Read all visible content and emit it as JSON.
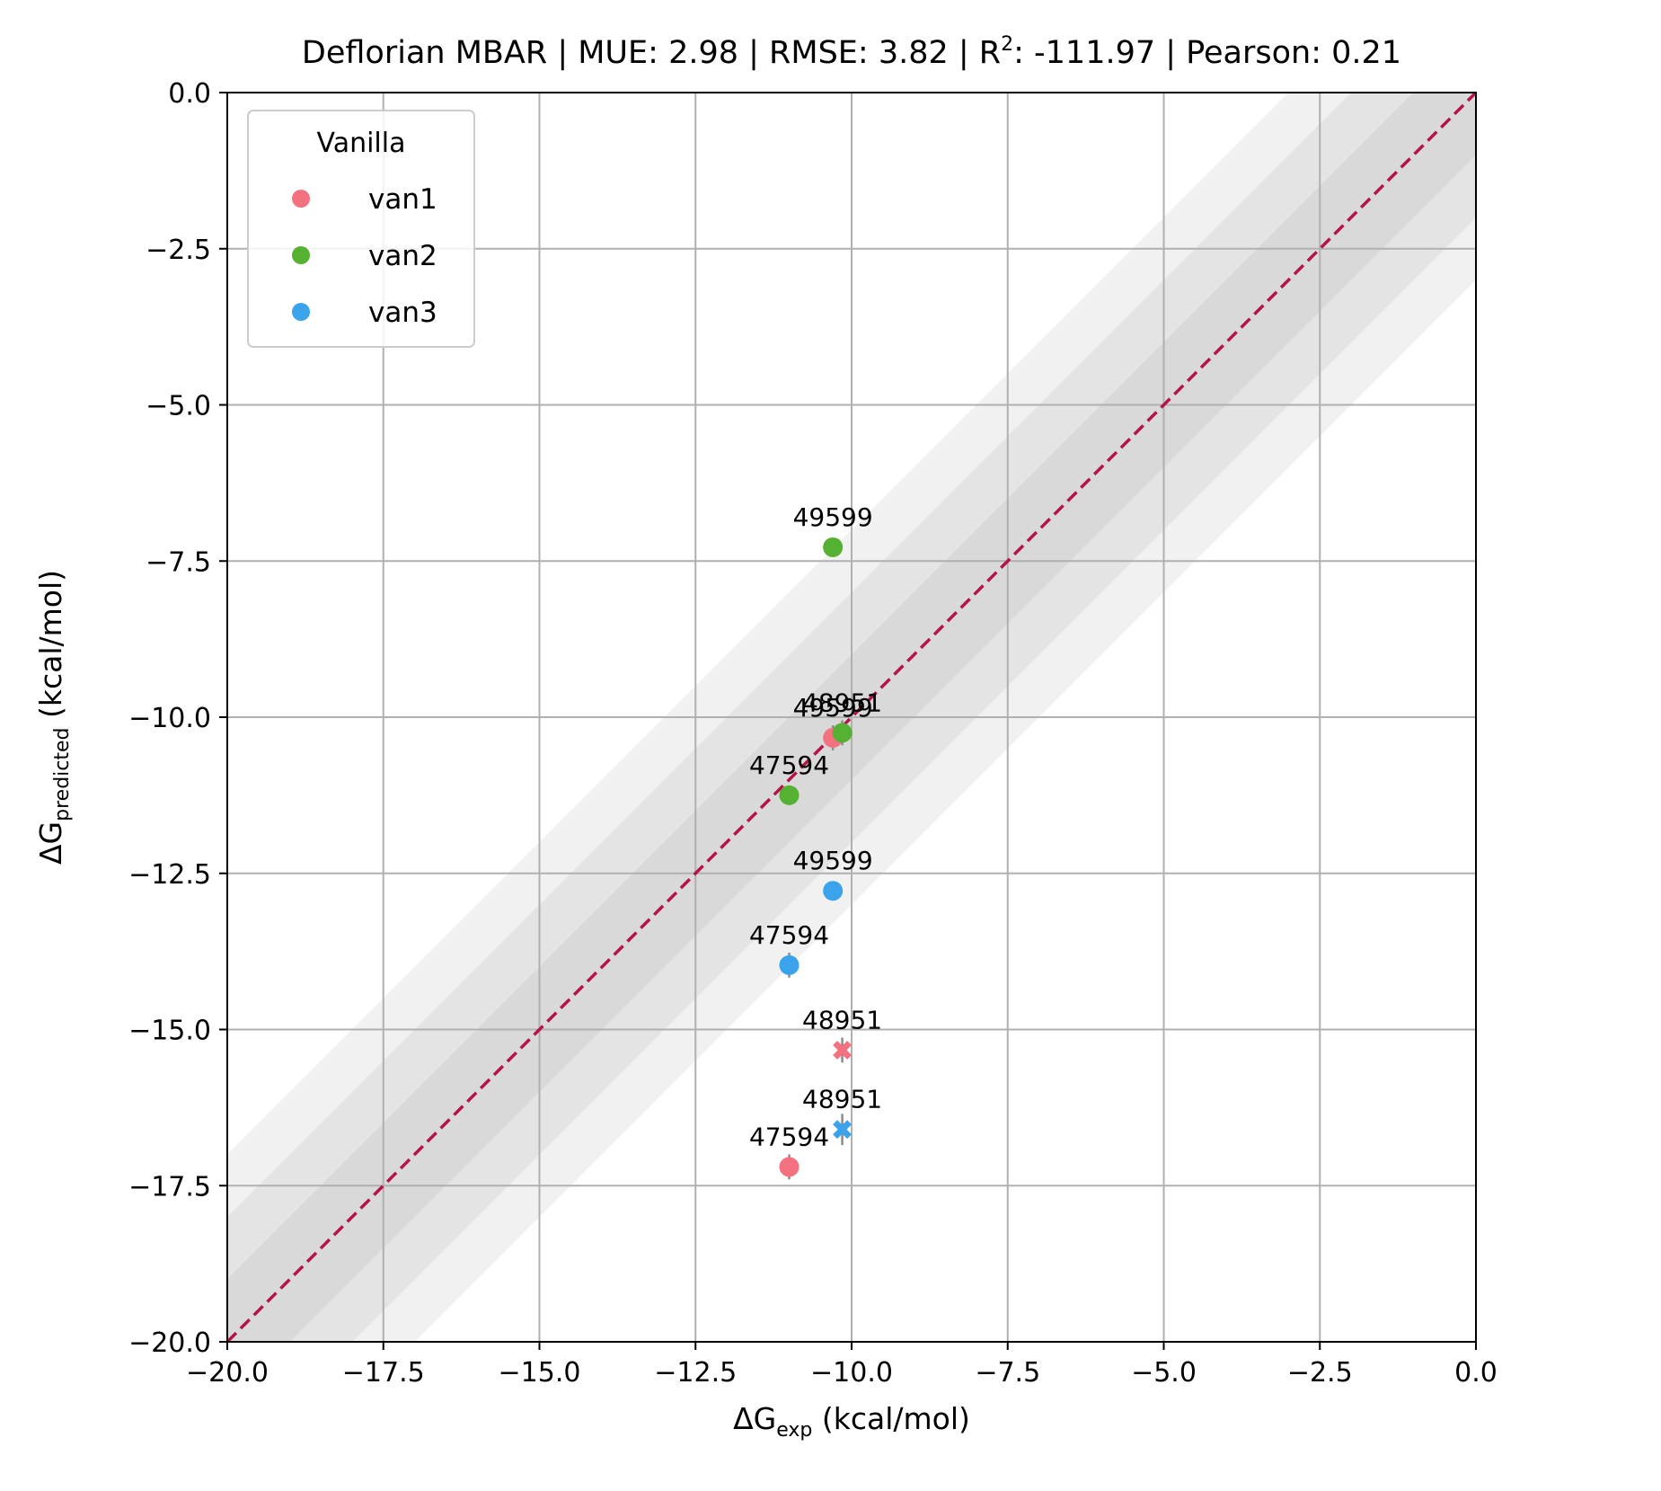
{
  "chart_data": {
    "type": "scatter",
    "title": {
      "prefix": "Deflorian MBAR | MUE: 2.98 | RMSE: 3.82 | R",
      "sup": "2",
      "suffix": ": -111.97 | Pearson: 0.21"
    },
    "xlabel": {
      "main": "ΔG",
      "sub": "exp",
      "unit": " (kcal/mol)"
    },
    "ylabel": {
      "main": "ΔG",
      "sub": "predicted",
      "unit": " (kcal/mol)"
    },
    "xlim": [
      -20,
      0
    ],
    "ylim": [
      -20,
      0
    ],
    "x_ticks": [
      -20,
      -17.5,
      -15,
      -12.5,
      -10,
      -7.5,
      -5,
      -2.5,
      0
    ],
    "y_ticks": [
      -20,
      -17.5,
      -15,
      -12.5,
      -10,
      -7.5,
      -5,
      -2.5,
      0
    ],
    "x_tick_labels": [
      "−20.0",
      "−17.5",
      "−15.0",
      "−12.5",
      "−10.0",
      "−7.5",
      "−5.0",
      "−2.5",
      "0.0"
    ],
    "y_tick_labels": [
      "−20.0",
      "−17.5",
      "−15.0",
      "−12.5",
      "−10.0",
      "−7.5",
      "−5.0",
      "−2.5",
      "0.0"
    ],
    "grid": true,
    "identity_line": {
      "color": "#b5134b",
      "style": "dashed"
    },
    "error_bands_kcal": [
      1,
      2,
      3
    ],
    "legend": {
      "title": "Vanilla",
      "placement": "upper-left",
      "entries": [
        {
          "label": "van1",
          "color": "#f4727f"
        },
        {
          "label": "van2",
          "color": "#55b131"
        },
        {
          "label": "van3",
          "color": "#3ba3ec"
        }
      ]
    },
    "series": [
      {
        "name": "van1",
        "color": "#f4727f",
        "points": [
          {
            "label": "49599",
            "x": -10.3,
            "y": -10.33,
            "err": 0.2,
            "marker": "circle"
          },
          {
            "label": "47594",
            "x": -11.0,
            "y": -17.2,
            "err": 0.2,
            "marker": "circle"
          },
          {
            "label": "48951",
            "x": -10.15,
            "y": -15.33,
            "err": 0.2,
            "marker": "x"
          }
        ]
      },
      {
        "name": "van2",
        "color": "#55b131",
        "points": [
          {
            "label": "49599",
            "x": -10.3,
            "y": -7.28,
            "err": 0.15,
            "marker": "circle"
          },
          {
            "label": "47594",
            "x": -11.0,
            "y": -11.25,
            "err": 0.15,
            "marker": "circle"
          },
          {
            "label": "48951",
            "x": -10.15,
            "y": -10.25,
            "err": 0.2,
            "marker": "circle"
          }
        ]
      },
      {
        "name": "van3",
        "color": "#3ba3ec",
        "points": [
          {
            "label": "49599",
            "x": -10.3,
            "y": -12.78,
            "err": 0.15,
            "marker": "circle"
          },
          {
            "label": "47594",
            "x": -11.0,
            "y": -13.97,
            "err": 0.2,
            "marker": "circle"
          },
          {
            "label": "48951",
            "x": -10.15,
            "y": -16.6,
            "err": 0.25,
            "marker": "x"
          }
        ]
      }
    ]
  }
}
